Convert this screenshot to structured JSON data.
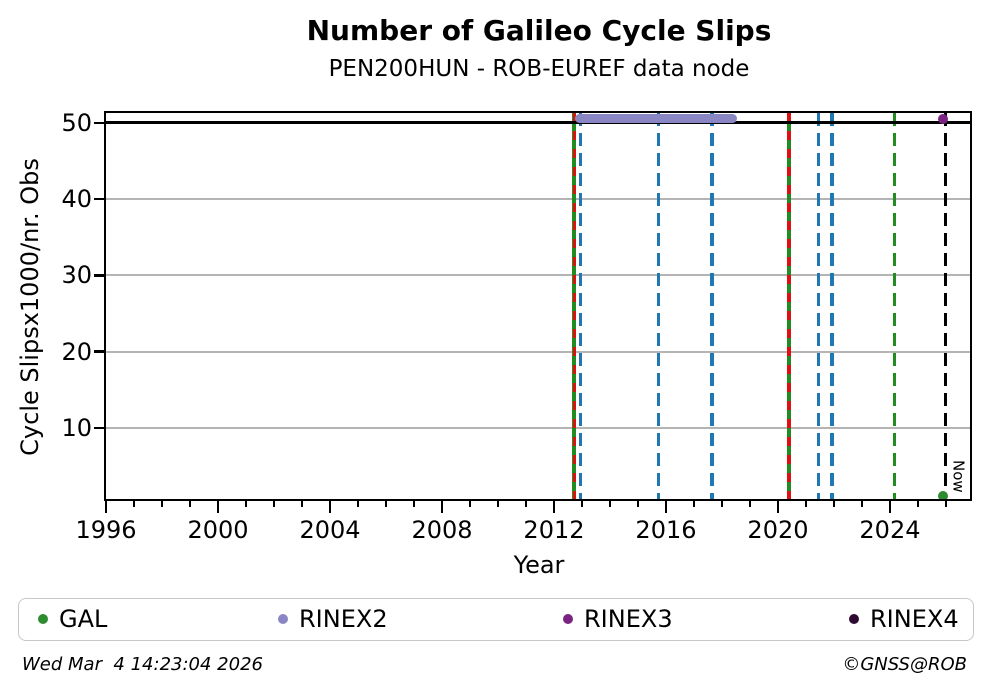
{
  "title": "Number of Galileo Cycle Slips",
  "subtitle": "PEN200HUN - ROB-EUREF data node",
  "footer": {
    "timestamp": "Wed Mar  4 14:23:04 2026",
    "credit": "©GNSS@ROB"
  },
  "legend": [
    {
      "label": "GAL",
      "color": "#2e8b2e"
    },
    {
      "label": "RINEX2",
      "color": "#8a86c4"
    },
    {
      "label": "RINEX3",
      "color": "#7a2382"
    },
    {
      "label": "RINEX4",
      "color": "#2e0a33"
    }
  ],
  "chart_data": {
    "type": "scatter",
    "title": "Number of Galileo Cycle Slips",
    "subtitle": "PEN200HUN - ROB-EUREF data node",
    "xlabel": "Year",
    "ylabel": "Cycle Slipsx1000/nr. Obs",
    "xlim": [
      1996,
      2026.93
    ],
    "ylim": [
      0.4,
      51.3
    ],
    "xticks": [
      1996,
      2000,
      2004,
      2008,
      2012,
      2016,
      2020,
      2024
    ],
    "xminor_step_years": 1,
    "yticks": [
      10,
      20,
      30,
      40,
      50
    ],
    "grid": "horizontal-gray",
    "grid_color": "#b4b4b4",
    "hline": {
      "y": 50,
      "color": "#000000",
      "style": "solid"
    },
    "vlines": [
      {
        "x": 2012.73,
        "color": "#228b22",
        "style": "solid",
        "overlay": {
          "color": "#dd1111",
          "style": "dashed"
        }
      },
      {
        "x": 2012.95,
        "color": "#1f77b4",
        "style": "dashed"
      },
      {
        "x": 2015.73,
        "color": "#1f77b4",
        "style": "dashed"
      },
      {
        "x": 2017.65,
        "color": "#1f77b4",
        "style": "dashed"
      },
      {
        "x": 2020.39,
        "color": "#228b22",
        "style": "solid",
        "overlay": {
          "color": "#dd1111",
          "style": "dashed"
        }
      },
      {
        "x": 2021.45,
        "color": "#1f77b4",
        "style": "dashed"
      },
      {
        "x": 2021.93,
        "color": "#1f77b4",
        "style": "dashed"
      },
      {
        "x": 2024.17,
        "color": "#228b22",
        "style": "dashed"
      },
      {
        "x": 2025.99,
        "color": "#000000",
        "style": "dashed",
        "label": "Now"
      }
    ],
    "series": [
      {
        "name": "RINEX2",
        "marker": "thick-line",
        "color": "#8a86c4",
        "x_start": 2012.75,
        "x_end": 2018.53,
        "y": 50.6
      },
      {
        "name": "RINEX3",
        "marker": "point",
        "color": "#7a2382",
        "x": 2025.89,
        "y": 50.55
      },
      {
        "name": "GAL",
        "marker": "point",
        "color": "#2e8b2e",
        "x": 2025.89,
        "y": 1.0
      }
    ],
    "legend_position": "bottom"
  }
}
